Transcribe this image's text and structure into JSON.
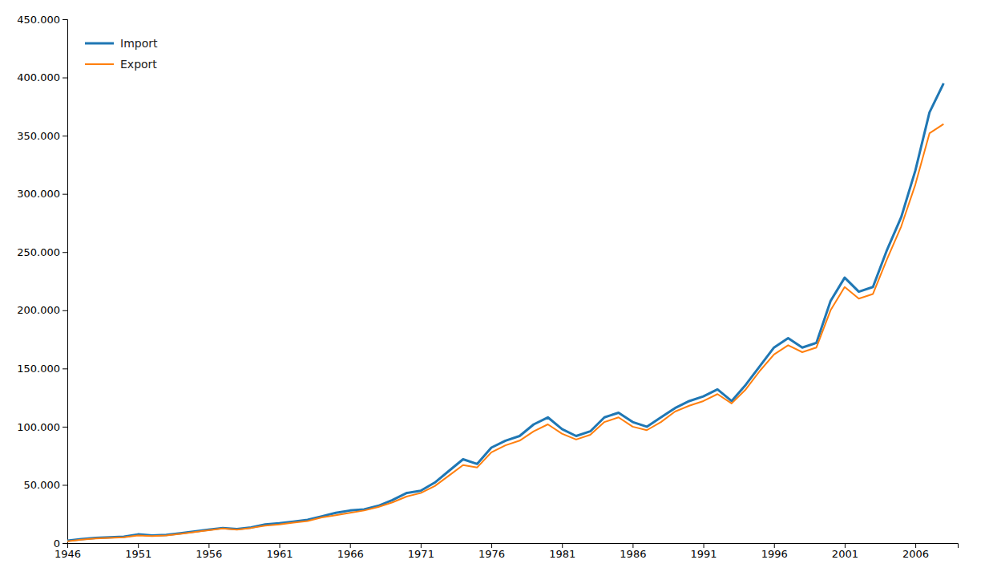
{
  "chart_data": {
    "type": "line",
    "x": [
      1946,
      1947,
      1948,
      1949,
      1950,
      1951,
      1952,
      1953,
      1954,
      1955,
      1956,
      1957,
      1958,
      1959,
      1960,
      1961,
      1962,
      1963,
      1964,
      1965,
      1966,
      1967,
      1968,
      1969,
      1970,
      1971,
      1972,
      1973,
      1974,
      1975,
      1976,
      1977,
      1978,
      1979,
      1980,
      1981,
      1982,
      1983,
      1984,
      1985,
      1986,
      1987,
      1988,
      1989,
      1990,
      1991,
      1992,
      1993,
      1994,
      1995,
      1996,
      1997,
      1998,
      1999,
      2000,
      2001,
      2002,
      2003,
      2004,
      2005,
      2006,
      2007,
      2008
    ],
    "series": [
      {
        "name": "Import",
        "values": [
          2000,
          3500,
          4500,
          5000,
          5500,
          7500,
          6500,
          7000,
          8500,
          10000,
          11500,
          13000,
          12000,
          13500,
          16000,
          17000,
          18500,
          20000,
          23000,
          26000,
          28000,
          29000,
          32000,
          37000,
          43000,
          45000,
          52000,
          62000,
          72000,
          68000,
          82000,
          88000,
          92000,
          102000,
          108000,
          98000,
          92000,
          96000,
          108000,
          112000,
          104000,
          100000,
          108000,
          116000,
          122000,
          126000,
          132000,
          122000,
          136000,
          152000,
          168000,
          176000,
          168000,
          172000,
          208000,
          228000,
          216000,
          220000,
          252000,
          280000,
          320000,
          370000,
          395000
        ]
      },
      {
        "name": "Export",
        "values": [
          1500,
          3000,
          4000,
          4500,
          5000,
          6500,
          6000,
          6500,
          8000,
          9500,
          11000,
          12500,
          11500,
          13000,
          15000,
          16000,
          17500,
          19000,
          22000,
          24000,
          26000,
          28000,
          31000,
          35000,
          40000,
          43000,
          49000,
          58000,
          67000,
          65000,
          78000,
          84000,
          88000,
          96000,
          102000,
          94000,
          89000,
          93000,
          104000,
          108000,
          100000,
          97000,
          104000,
          113000,
          118000,
          122000,
          128000,
          120000,
          132000,
          148000,
          162000,
          170000,
          164000,
          168000,
          200000,
          220000,
          210000,
          214000,
          244000,
          272000,
          308000,
          352000,
          360000
        ]
      }
    ],
    "xlim": [
      1946,
      2009
    ],
    "xticks": [
      1946,
      1951,
      1956,
      1961,
      1966,
      1971,
      1976,
      1981,
      1986,
      1991,
      1996,
      2001,
      2006
    ],
    "ylim": [
      0,
      450000
    ],
    "yticks": [
      0,
      {
        "value": 50000,
        "label": "50.000"
      },
      {
        "value": 100000,
        "label": "100.000"
      },
      {
        "value": 150000,
        "label": "150.000"
      },
      {
        "value": 200000,
        "label": "200.000"
      },
      {
        "value": 250000,
        "label": "250.000"
      },
      {
        "value": 300000,
        "label": "300.000"
      },
      {
        "value": 350000,
        "label": "350.000"
      },
      {
        "value": 400000,
        "label": "400.000"
      },
      {
        "value": 450000,
        "label": "450.000"
      }
    ],
    "grid": false,
    "legend": "upper left"
  }
}
